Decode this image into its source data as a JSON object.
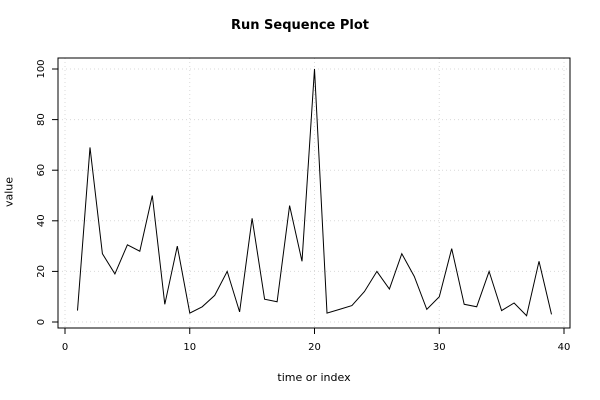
{
  "chart_data": {
    "type": "line",
    "title": "Run Sequence Plot",
    "xlabel": "time or index",
    "ylabel": "value",
    "xlim": [
      0,
      40
    ],
    "ylim": [
      0,
      100
    ],
    "x_ticks": [
      0,
      10,
      20,
      30,
      40
    ],
    "y_ticks": [
      0,
      20,
      40,
      60,
      80,
      100
    ],
    "grid": true,
    "series": [
      {
        "x": [
          1,
          2,
          3,
          4,
          5,
          6,
          7,
          8,
          9,
          10,
          11,
          12,
          13,
          14,
          15,
          16,
          17,
          18,
          19,
          20,
          21,
          22,
          23,
          24,
          25,
          26,
          27,
          28,
          29,
          30,
          31,
          32,
          33,
          34,
          35,
          36,
          37,
          38,
          39
        ],
        "values": [
          4.5,
          69,
          27,
          19,
          30.5,
          28,
          50,
          7,
          30,
          3.5,
          6,
          10.5,
          20,
          4,
          41,
          9,
          8,
          46,
          24,
          100,
          3.5,
          5,
          6.5,
          12,
          20,
          13,
          27,
          18,
          5,
          10,
          29,
          7,
          6,
          20,
          4.5,
          7.5,
          2.5,
          24,
          3
        ]
      }
    ],
    "line_color": "#000000",
    "grid_color": "#d9d9d9"
  }
}
